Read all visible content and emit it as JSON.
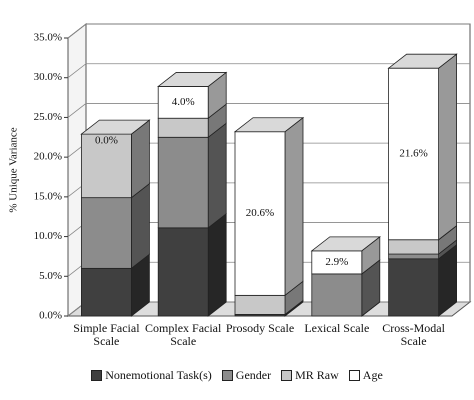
{
  "chart_data": {
    "type": "stacked-bar-3d",
    "y_label": "% Unique Variance",
    "categories": [
      "Simple Facial Scale",
      "Complex Facial Scale",
      "Prosody Scale",
      "Lexical Scale",
      "Cross-Modal Scale"
    ],
    "series": [
      {
        "name": "Nonemotional Task(s)",
        "color": "#404040",
        "values": [
          6.0,
          11.1,
          0.2,
          0,
          7.2
        ]
      },
      {
        "name": "Gender",
        "color": "#8c8c8c",
        "values": [
          8.9,
          11.4,
          0,
          5.3,
          0.6
        ]
      },
      {
        "name": "MR Raw",
        "color": "#c8c8c8",
        "values": [
          8.0,
          2.4,
          2.4,
          0,
          1.8
        ]
      },
      {
        "name": "Age",
        "color": "#ffffff",
        "values": [
          0.0,
          4.0,
          20.6,
          2.9,
          21.6
        ],
        "value_labels": [
          "0.0%",
          "4.0%",
          "20.6%",
          "2.9%",
          "21.6%"
        ]
      }
    ],
    "ylim": [
      0,
      35
    ],
    "yticks": [
      {
        "value": 0,
        "label": "0.0%"
      },
      {
        "value": 5,
        "label": "5.0%"
      },
      {
        "value": 10,
        "label": "10.0%"
      },
      {
        "value": 15,
        "label": "15.0%"
      },
      {
        "value": 20,
        "label": "20.0%"
      },
      {
        "value": 25,
        "label": "25.0%"
      },
      {
        "value": 30,
        "label": "30.0%"
      },
      {
        "value": 35,
        "label": "35.0%"
      }
    ],
    "grid": true,
    "legend": "bottom"
  }
}
